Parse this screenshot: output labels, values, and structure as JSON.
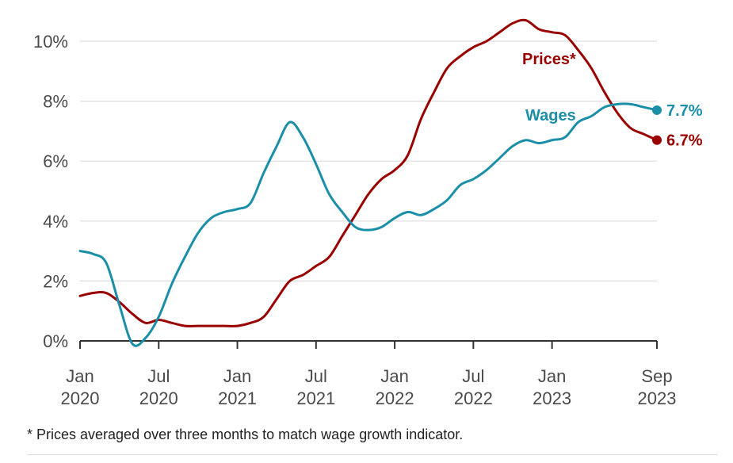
{
  "chart_data": {
    "type": "line",
    "title": "",
    "xlabel": "",
    "ylabel": "",
    "ylim": [
      0,
      10.5
    ],
    "xlim": [
      "2020-01",
      "2023-09"
    ],
    "grid": true,
    "yticks": [
      {
        "value": 0,
        "label": "0%"
      },
      {
        "value": 2,
        "label": "2%"
      },
      {
        "value": 4,
        "label": "4%"
      },
      {
        "value": 6,
        "label": "6%"
      },
      {
        "value": 8,
        "label": "8%"
      },
      {
        "value": 10,
        "label": "10%"
      }
    ],
    "xticks": [
      {
        "value": "2020-01",
        "line1": "Jan",
        "line2": "2020"
      },
      {
        "value": "2020-07",
        "line1": "Jul",
        "line2": "2020"
      },
      {
        "value": "2021-01",
        "line1": "Jan",
        "line2": "2021"
      },
      {
        "value": "2021-07",
        "line1": "Jul",
        "line2": "2021"
      },
      {
        "value": "2022-01",
        "line1": "Jan",
        "line2": "2022"
      },
      {
        "value": "2022-07",
        "line1": "Jul",
        "line2": "2022"
      },
      {
        "value": "2023-01",
        "line1": "Jan",
        "line2": "2023"
      },
      {
        "value": "2023-09",
        "line1": "Sep",
        "line2": "2023"
      }
    ],
    "x": [
      "2020-01",
      "2020-02",
      "2020-03",
      "2020-04",
      "2020-05",
      "2020-06",
      "2020-07",
      "2020-08",
      "2020-09",
      "2020-10",
      "2020-11",
      "2020-12",
      "2021-01",
      "2021-02",
      "2021-03",
      "2021-04",
      "2021-05",
      "2021-06",
      "2021-07",
      "2021-08",
      "2021-09",
      "2021-10",
      "2021-11",
      "2021-12",
      "2022-01",
      "2022-02",
      "2022-03",
      "2022-04",
      "2022-05",
      "2022-06",
      "2022-07",
      "2022-08",
      "2022-09",
      "2022-10",
      "2022-11",
      "2022-12",
      "2023-01",
      "2023-02",
      "2023-03",
      "2023-04",
      "2023-05",
      "2023-06",
      "2023-07",
      "2023-08",
      "2023-09"
    ],
    "series": [
      {
        "name": "Prices*",
        "color": "#990000",
        "end_label": "6.7%",
        "values": [
          1.5,
          1.6,
          1.6,
          1.3,
          0.9,
          0.6,
          0.7,
          0.6,
          0.5,
          0.5,
          0.5,
          0.5,
          0.5,
          0.6,
          0.8,
          1.4,
          2.0,
          2.2,
          2.5,
          2.8,
          3.5,
          4.2,
          4.9,
          5.4,
          5.7,
          6.2,
          7.4,
          8.3,
          9.1,
          9.5,
          9.8,
          10.0,
          10.3,
          10.6,
          10.7,
          10.4,
          10.3,
          10.2,
          9.7,
          9.1,
          8.3,
          7.6,
          7.1,
          6.9,
          6.7
        ]
      },
      {
        "name": "Wages",
        "color": "#1b8ea8",
        "end_label": "7.7%",
        "values": [
          3.0,
          2.9,
          2.6,
          1.2,
          -0.1,
          0.1,
          0.8,
          1.9,
          2.8,
          3.6,
          4.1,
          4.3,
          4.4,
          4.6,
          5.6,
          6.5,
          7.3,
          6.8,
          5.9,
          4.9,
          4.3,
          3.8,
          3.7,
          3.8,
          4.1,
          4.3,
          4.2,
          4.4,
          4.7,
          5.2,
          5.4,
          5.7,
          6.1,
          6.5,
          6.7,
          6.6,
          6.7,
          6.8,
          7.3,
          7.5,
          7.8,
          7.9,
          7.9,
          7.8,
          7.7
        ]
      }
    ],
    "footnote": "* Prices averaged over three months to match wage growth indicator."
  }
}
